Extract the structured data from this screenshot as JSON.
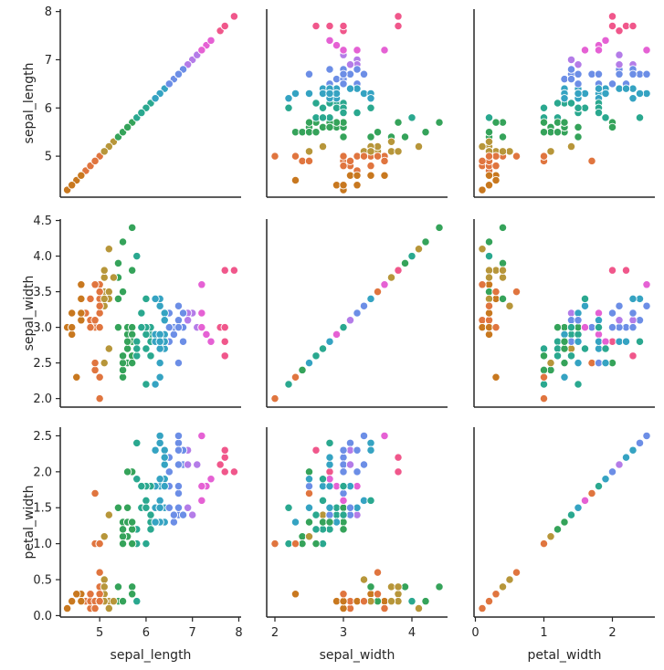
{
  "chart_data": {
    "type": "scatter",
    "variables": [
      "sepal_length",
      "sepal_width",
      "petal_width"
    ],
    "axis_labels": {
      "sepal_length": "sepal_length",
      "sepal_width": "sepal_width",
      "petal_width": "petal_width"
    },
    "ranges": {
      "sepal_length": [
        4.15,
        8.05
      ],
      "sepal_width": [
        1.88,
        4.52
      ],
      "petal_width": [
        -0.02,
        2.62
      ]
    },
    "ticks": {
      "sepal_length": {
        "row": [
          5,
          6,
          7,
          8
        ],
        "col": [
          5,
          6,
          7,
          8
        ]
      },
      "sepal_width": {
        "row": [
          2.0,
          2.5,
          3.0,
          3.5,
          4.0,
          4.5
        ],
        "col": [
          2,
          3,
          4
        ]
      },
      "petal_width": {
        "row": [
          0.0,
          0.5,
          1.0,
          1.5,
          2.0,
          2.5
        ],
        "col": [
          0,
          1,
          2
        ]
      }
    },
    "tick_labels": {
      "sepal_length": {
        "row": [
          "5",
          "6",
          "7",
          "8"
        ],
        "col": [
          "5",
          "6",
          "7",
          "8"
        ]
      },
      "sepal_width": {
        "row": [
          "2.0",
          "2.5",
          "3.0",
          "3.5",
          "4.0",
          "4.5"
        ],
        "col": [
          "2",
          "3",
          "4"
        ]
      },
      "petal_width": {
        "row": [
          "0.0",
          "0.5",
          "1.0",
          "1.5",
          "2.0",
          "2.5"
        ],
        "col": [
          "0",
          "1",
          "2"
        ]
      }
    },
    "hue": "sepal_length",
    "hue_range": [
      4.3,
      7.9
    ],
    "palette": [
      "#c8781f",
      "#e0753f",
      "#b7963a",
      "#35a35a",
      "#2aa88f",
      "#35a3c2",
      "#6c8ee6",
      "#b47ce8",
      "#e561d4",
      "#f0578b"
    ],
    "points": [
      [
        5.1,
        3.5,
        0.2
      ],
      [
        4.9,
        3.0,
        0.2
      ],
      [
        4.7,
        3.2,
        0.2
      ],
      [
        4.6,
        3.1,
        0.2
      ],
      [
        5.0,
        3.6,
        0.2
      ],
      [
        5.4,
        3.9,
        0.4
      ],
      [
        4.6,
        3.4,
        0.3
      ],
      [
        5.0,
        3.4,
        0.2
      ],
      [
        4.4,
        2.9,
        0.2
      ],
      [
        4.9,
        3.1,
        0.1
      ],
      [
        5.4,
        3.7,
        0.2
      ],
      [
        4.8,
        3.4,
        0.2
      ],
      [
        4.8,
        3.0,
        0.1
      ],
      [
        4.3,
        3.0,
        0.1
      ],
      [
        5.8,
        4.0,
        0.2
      ],
      [
        5.7,
        4.4,
        0.4
      ],
      [
        5.4,
        3.9,
        0.4
      ],
      [
        5.1,
        3.5,
        0.3
      ],
      [
        5.7,
        3.8,
        0.3
      ],
      [
        5.1,
        3.8,
        0.3
      ],
      [
        5.4,
        3.4,
        0.2
      ],
      [
        5.1,
        3.7,
        0.4
      ],
      [
        4.6,
        3.6,
        0.2
      ],
      [
        5.1,
        3.3,
        0.5
      ],
      [
        4.8,
        3.4,
        0.2
      ],
      [
        5.0,
        3.0,
        0.2
      ],
      [
        5.0,
        3.4,
        0.4
      ],
      [
        5.2,
        3.5,
        0.2
      ],
      [
        5.2,
        3.4,
        0.2
      ],
      [
        4.7,
        3.2,
        0.2
      ],
      [
        4.8,
        3.1,
        0.2
      ],
      [
        5.4,
        3.4,
        0.4
      ],
      [
        5.2,
        4.1,
        0.1
      ],
      [
        5.5,
        4.2,
        0.2
      ],
      [
        4.9,
        3.1,
        0.2
      ],
      [
        5.0,
        3.2,
        0.2
      ],
      [
        5.5,
        3.5,
        0.2
      ],
      [
        4.9,
        3.6,
        0.1
      ],
      [
        4.4,
        3.0,
        0.2
      ],
      [
        5.1,
        3.4,
        0.2
      ],
      [
        5.0,
        3.5,
        0.3
      ],
      [
        4.5,
        2.3,
        0.3
      ],
      [
        4.4,
        3.2,
        0.2
      ],
      [
        5.0,
        3.5,
        0.6
      ],
      [
        5.1,
        3.8,
        0.4
      ],
      [
        4.8,
        3.0,
        0.3
      ],
      [
        5.1,
        3.8,
        0.2
      ],
      [
        4.6,
        3.2,
        0.2
      ],
      [
        5.3,
        3.7,
        0.2
      ],
      [
        5.0,
        3.3,
        0.2
      ],
      [
        7.0,
        3.2,
        1.4
      ],
      [
        6.4,
        3.2,
        1.5
      ],
      [
        6.9,
        3.1,
        1.5
      ],
      [
        5.5,
        2.3,
        1.3
      ],
      [
        6.5,
        2.8,
        1.5
      ],
      [
        5.7,
        2.8,
        1.3
      ],
      [
        6.3,
        3.3,
        1.6
      ],
      [
        4.9,
        2.4,
        1.0
      ],
      [
        6.6,
        2.9,
        1.3
      ],
      [
        5.2,
        2.7,
        1.4
      ],
      [
        5.0,
        2.0,
        1.0
      ],
      [
        5.9,
        3.0,
        1.5
      ],
      [
        6.0,
        2.2,
        1.0
      ],
      [
        6.1,
        2.9,
        1.4
      ],
      [
        5.6,
        2.9,
        1.3
      ],
      [
        6.7,
        3.1,
        1.4
      ],
      [
        5.6,
        3.0,
        1.5
      ],
      [
        5.8,
        2.7,
        1.0
      ],
      [
        6.2,
        2.2,
        1.5
      ],
      [
        5.6,
        2.5,
        1.1
      ],
      [
        5.9,
        3.2,
        1.8
      ],
      [
        6.1,
        2.8,
        1.3
      ],
      [
        6.3,
        2.5,
        1.5
      ],
      [
        6.1,
        2.8,
        1.2
      ],
      [
        6.4,
        2.9,
        1.3
      ],
      [
        6.6,
        3.0,
        1.4
      ],
      [
        6.8,
        2.8,
        1.4
      ],
      [
        6.7,
        3.0,
        1.7
      ],
      [
        6.0,
        2.9,
        1.5
      ],
      [
        5.7,
        2.6,
        1.0
      ],
      [
        5.5,
        2.4,
        1.1
      ],
      [
        5.5,
        2.4,
        1.0
      ],
      [
        5.8,
        2.7,
        1.2
      ],
      [
        6.0,
        2.7,
        1.6
      ],
      [
        5.4,
        3.0,
        1.5
      ],
      [
        6.0,
        3.4,
        1.6
      ],
      [
        6.7,
        3.1,
        1.5
      ],
      [
        6.3,
        2.3,
        1.3
      ],
      [
        5.6,
        3.0,
        1.3
      ],
      [
        5.5,
        2.5,
        1.3
      ],
      [
        5.5,
        2.6,
        1.2
      ],
      [
        6.1,
        3.0,
        1.4
      ],
      [
        5.8,
        2.6,
        1.2
      ],
      [
        5.0,
        2.3,
        1.0
      ],
      [
        5.6,
        2.7,
        1.3
      ],
      [
        5.7,
        3.0,
        1.2
      ],
      [
        5.7,
        2.9,
        1.3
      ],
      [
        6.2,
        2.9,
        1.3
      ],
      [
        5.1,
        2.5,
        1.1
      ],
      [
        5.7,
        2.8,
        1.3
      ],
      [
        6.3,
        3.3,
        2.5
      ],
      [
        5.8,
        2.7,
        1.9
      ],
      [
        7.1,
        3.0,
        2.1
      ],
      [
        6.3,
        2.9,
        1.8
      ],
      [
        6.5,
        3.0,
        2.2
      ],
      [
        7.6,
        3.0,
        2.1
      ],
      [
        4.9,
        2.5,
        1.7
      ],
      [
        7.3,
        2.9,
        1.8
      ],
      [
        6.7,
        2.5,
        1.8
      ],
      [
        7.2,
        3.6,
        2.5
      ],
      [
        6.5,
        3.2,
        2.0
      ],
      [
        6.4,
        2.7,
        1.9
      ],
      [
        6.8,
        3.0,
        2.1
      ],
      [
        5.7,
        2.5,
        2.0
      ],
      [
        5.8,
        2.8,
        2.4
      ],
      [
        6.4,
        3.2,
        2.3
      ],
      [
        6.5,
        3.0,
        1.8
      ],
      [
        7.7,
        3.8,
        2.2
      ],
      [
        7.7,
        2.6,
        2.3
      ],
      [
        6.0,
        2.2,
        1.5
      ],
      [
        6.9,
        3.2,
        2.3
      ],
      [
        5.6,
        2.8,
        2.0
      ],
      [
        7.7,
        2.8,
        2.0
      ],
      [
        6.3,
        2.7,
        1.8
      ],
      [
        6.7,
        3.3,
        2.1
      ],
      [
        7.2,
        3.2,
        1.8
      ],
      [
        6.2,
        2.8,
        1.8
      ],
      [
        6.1,
        3.0,
        1.8
      ],
      [
        6.4,
        2.8,
        2.1
      ],
      [
        7.2,
        3.0,
        1.6
      ],
      [
        7.4,
        2.8,
        1.9
      ],
      [
        7.9,
        3.8,
        2.0
      ],
      [
        6.4,
        2.8,
        2.2
      ],
      [
        6.3,
        2.8,
        1.5
      ],
      [
        6.1,
        2.6,
        1.4
      ],
      [
        7.7,
        3.0,
        2.3
      ],
      [
        6.3,
        3.4,
        2.4
      ],
      [
        6.4,
        3.1,
        1.8
      ],
      [
        6.0,
        3.0,
        1.8
      ],
      [
        6.9,
        3.1,
        2.1
      ],
      [
        6.7,
        3.1,
        2.4
      ],
      [
        6.9,
        3.1,
        2.3
      ],
      [
        5.8,
        2.7,
        1.9
      ],
      [
        6.8,
        3.2,
        2.3
      ],
      [
        6.7,
        3.3,
        2.5
      ],
      [
        6.7,
        3.0,
        2.3
      ],
      [
        6.3,
        2.5,
        1.9
      ],
      [
        6.5,
        3.0,
        2.0
      ],
      [
        6.2,
        3.4,
        2.3
      ],
      [
        5.9,
        3.0,
        1.8
      ]
    ]
  }
}
